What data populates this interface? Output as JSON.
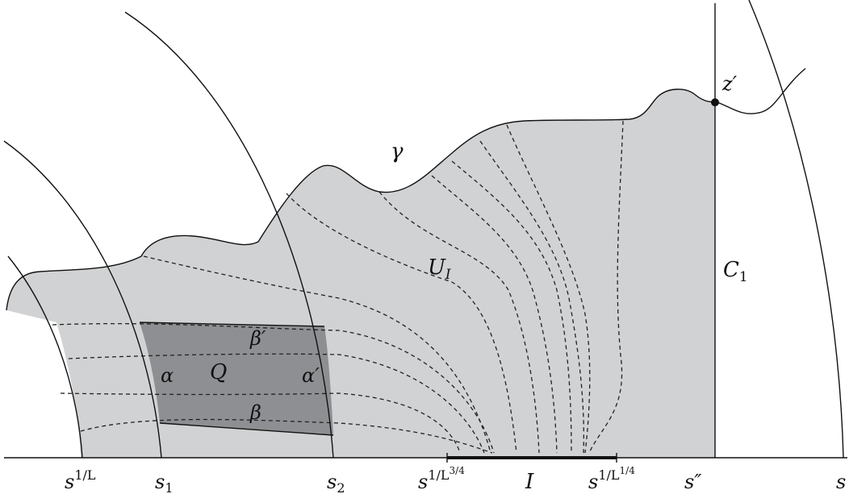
{
  "labels": {
    "gamma": "γ",
    "z_prime": "z′",
    "U_I_main": "U",
    "U_I_sub": "I",
    "C1_main": "C",
    "C1_sub": "1",
    "Q": "Q",
    "alpha": "α",
    "alpha_prime": "α′",
    "beta": "β",
    "beta_prime": "β′"
  },
  "axis_labels": {
    "s_1_over_L_base": "s",
    "s_1_over_L_exp": "1/L",
    "s1_base": "s",
    "s1_sub": "1",
    "s2_base": "s",
    "s2_sub": "2",
    "s_L34_base": "s",
    "s_L34_exp_a": "1/L",
    "s_L34_exp_b": "3/4",
    "I": "I",
    "s_L14_base": "s",
    "s_L14_exp_a": "1/L",
    "s_L14_exp_b": "1/4",
    "s_double_prime": "s″",
    "s": "s"
  },
  "colors": {
    "light_region": "#d1d2d4",
    "dark_region": "#8e8f92",
    "stroke": "#111111"
  }
}
